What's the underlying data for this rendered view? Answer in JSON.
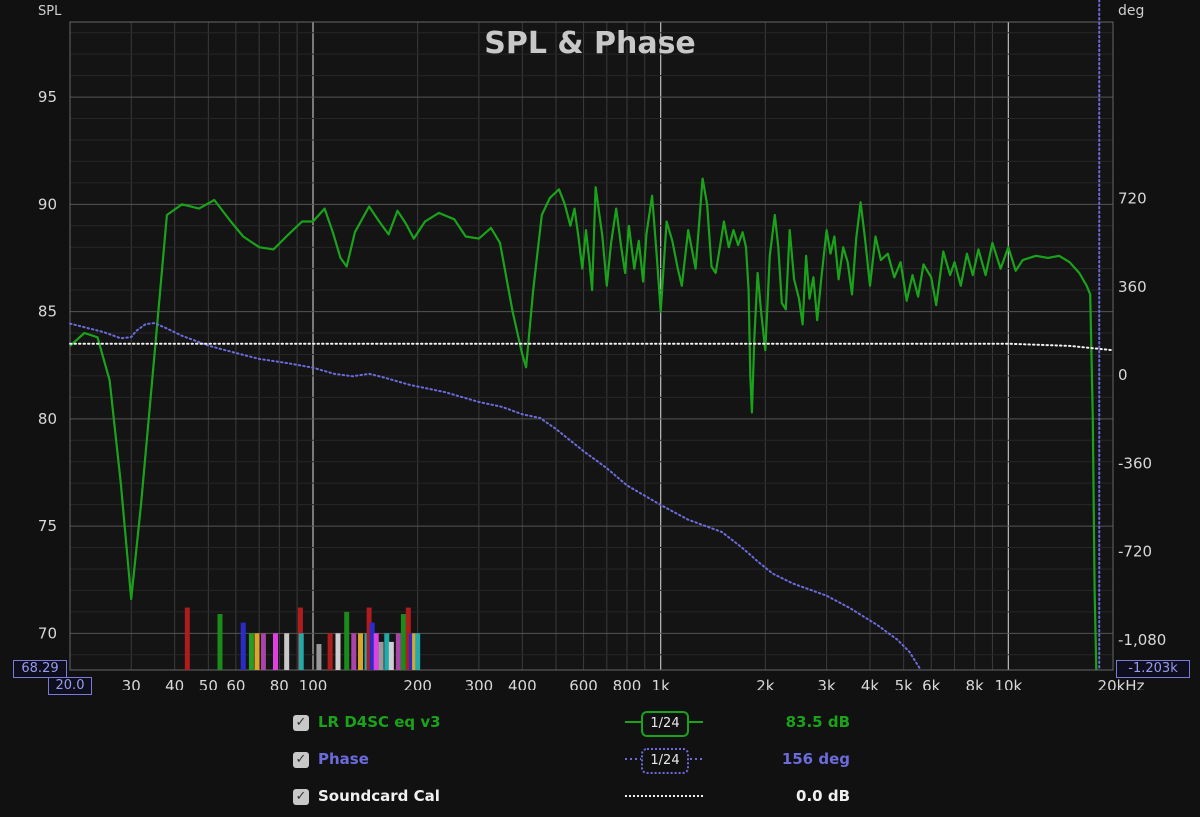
{
  "title": "SPL & Phase",
  "left_axis_label": "SPL",
  "right_axis_label": "deg",
  "x_unit_label": "20kHz",
  "cursor_readouts": {
    "x_start": "20.0",
    "y_left_min": "68.29",
    "y_right_min": "-1.203k"
  },
  "colors": {
    "background": "#111112",
    "spl": "#1a8c1a",
    "phase": "#6b6bdc",
    "cal": "#f0f0f0",
    "grid": "#3a3a3a"
  },
  "legend": [
    {
      "name": "LR D4SC eq v3",
      "value": "83.5 dB",
      "smoothing": "1/24",
      "checked": true,
      "color": "#1aa31a"
    },
    {
      "name": "Phase",
      "value": "156 deg",
      "smoothing": "1/24",
      "checked": true,
      "color": "#6b6bdc"
    },
    {
      "name": "Soundcard Cal",
      "value": "0.0 dB",
      "smoothing": "",
      "checked": true,
      "color": "#f0f0f0"
    }
  ],
  "chart_data": {
    "type": "line",
    "title": "SPL & Phase",
    "x_scale": "log",
    "xlim": [
      20,
      20000
    ],
    "ylim": [
      68.29,
      98.5
    ],
    "y2lim": [
      -1203,
      1440
    ],
    "x_ticks": [
      {
        "v": 20,
        "label": "20.0"
      },
      {
        "v": 30,
        "label": "30"
      },
      {
        "v": 40,
        "label": "40"
      },
      {
        "v": 50,
        "label": "50"
      },
      {
        "v": 60,
        "label": "60"
      },
      {
        "v": 80,
        "label": "80"
      },
      {
        "v": 100,
        "label": "100"
      },
      {
        "v": 200,
        "label": "200"
      },
      {
        "v": 300,
        "label": "300"
      },
      {
        "v": 400,
        "label": "400"
      },
      {
        "v": 600,
        "label": "600"
      },
      {
        "v": 800,
        "label": "800"
      },
      {
        "v": 1000,
        "label": "1k"
      },
      {
        "v": 2000,
        "label": "2k"
      },
      {
        "v": 3000,
        "label": "3k"
      },
      {
        "v": 4000,
        "label": "4k"
      },
      {
        "v": 5000,
        "label": "5k"
      },
      {
        "v": 6000,
        "label": "6k"
      },
      {
        "v": 8000,
        "label": "8k"
      },
      {
        "v": 10000,
        "label": "10k"
      },
      {
        "v": 20000,
        "label": "20kHz"
      }
    ],
    "y_ticks": [
      {
        "v": 70,
        "label": "70"
      },
      {
        "v": 75,
        "label": "75"
      },
      {
        "v": 80,
        "label": "80"
      },
      {
        "v": 85,
        "label": "85"
      },
      {
        "v": 90,
        "label": "90"
      },
      {
        "v": 95,
        "label": "95"
      }
    ],
    "y2_ticks": [
      {
        "v": -1080,
        "label": "-1,080"
      },
      {
        "v": -720,
        "label": "-720"
      },
      {
        "v": -360,
        "label": "-360"
      },
      {
        "v": 0,
        "label": "0"
      },
      {
        "v": 360,
        "label": "360"
      },
      {
        "v": 720,
        "label": "720"
      }
    ],
    "series": [
      {
        "name": "LR D4SC eq v3",
        "axis": "left",
        "style": "solid",
        "color": "#1aa31a",
        "points": [
          [
            20,
            83.4
          ],
          [
            22,
            84
          ],
          [
            24,
            83.8
          ],
          [
            26,
            81.8
          ],
          [
            28,
            77
          ],
          [
            30,
            71.6
          ],
          [
            32,
            76
          ],
          [
            35,
            83
          ],
          [
            38,
            89.5
          ],
          [
            42,
            90
          ],
          [
            47,
            89.8
          ],
          [
            52,
            90.2
          ],
          [
            58,
            89.2
          ],
          [
            63,
            88.5
          ],
          [
            70,
            88
          ],
          [
            77,
            87.9
          ],
          [
            85,
            88.6
          ],
          [
            93,
            89.2
          ],
          [
            100,
            89.2
          ],
          [
            108,
            89.8
          ],
          [
            114,
            88.7
          ],
          [
            120,
            87.5
          ],
          [
            125,
            87.1
          ],
          [
            132,
            88.7
          ],
          [
            145,
            89.9
          ],
          [
            155,
            89.2
          ],
          [
            165,
            88.6
          ],
          [
            175,
            89.7
          ],
          [
            185,
            89.1
          ],
          [
            195,
            88.4
          ],
          [
            210,
            89.2
          ],
          [
            230,
            89.6
          ],
          [
            255,
            89.3
          ],
          [
            275,
            88.5
          ],
          [
            300,
            88.4
          ],
          [
            325,
            88.9
          ],
          [
            345,
            88.2
          ],
          [
            375,
            85
          ],
          [
            400,
            83
          ],
          [
            410,
            82.4
          ],
          [
            430,
            86
          ],
          [
            455,
            89.5
          ],
          [
            480,
            90.3
          ],
          [
            510,
            90.7
          ],
          [
            530,
            90
          ],
          [
            550,
            89
          ],
          [
            565,
            89.8
          ],
          [
            580,
            88.5
          ],
          [
            595,
            87
          ],
          [
            610,
            88.8
          ],
          [
            625,
            87.2
          ],
          [
            635,
            86
          ],
          [
            650,
            90.8
          ],
          [
            680,
            88.5
          ],
          [
            700,
            86.2
          ],
          [
            720,
            88.2
          ],
          [
            745,
            89.8
          ],
          [
            770,
            88
          ],
          [
            790,
            86.8
          ],
          [
            810,
            89
          ],
          [
            840,
            87
          ],
          [
            865,
            88.3
          ],
          [
            890,
            86.4
          ],
          [
            910,
            88.6
          ],
          [
            945,
            90.4
          ],
          [
            975,
            87.5
          ],
          [
            1000,
            85
          ],
          [
            1040,
            89.2
          ],
          [
            1080,
            88.3
          ],
          [
            1120,
            87
          ],
          [
            1150,
            86.2
          ],
          [
            1200,
            88.8
          ],
          [
            1260,
            87
          ],
          [
            1320,
            91.2
          ],
          [
            1360,
            90
          ],
          [
            1400,
            87.1
          ],
          [
            1440,
            86.8
          ],
          [
            1480,
            88
          ],
          [
            1520,
            89.2
          ],
          [
            1570,
            88
          ],
          [
            1620,
            88.8
          ],
          [
            1670,
            88.1
          ],
          [
            1720,
            88.7
          ],
          [
            1760,
            88
          ],
          [
            1790,
            86
          ],
          [
            1810,
            82
          ],
          [
            1830,
            80.3
          ],
          [
            1860,
            83.8
          ],
          [
            1900,
            86.8
          ],
          [
            1950,
            84.8
          ],
          [
            2000,
            83.2
          ],
          [
            2060,
            87.6
          ],
          [
            2130,
            89.5
          ],
          [
            2180,
            88
          ],
          [
            2230,
            85.4
          ],
          [
            2290,
            85.1
          ],
          [
            2350,
            88.8
          ],
          [
            2420,
            86.5
          ],
          [
            2500,
            85.6
          ],
          [
            2560,
            84.4
          ],
          [
            2620,
            87.6
          ],
          [
            2680,
            85.6
          ],
          [
            2750,
            86.6
          ],
          [
            2820,
            84.6
          ],
          [
            2900,
            86.6
          ],
          [
            3000,
            88.8
          ],
          [
            3080,
            87.7
          ],
          [
            3160,
            88.5
          ],
          [
            3250,
            86.5
          ],
          [
            3350,
            88
          ],
          [
            3450,
            87.3
          ],
          [
            3550,
            85.8
          ],
          [
            3650,
            88.4
          ],
          [
            3760,
            90.1
          ],
          [
            3870,
            88.4
          ],
          [
            4000,
            86.2
          ],
          [
            4150,
            88.5
          ],
          [
            4300,
            87.4
          ],
          [
            4500,
            87.7
          ],
          [
            4700,
            86.6
          ],
          [
            4900,
            87.3
          ],
          [
            5100,
            85.5
          ],
          [
            5300,
            86.7
          ],
          [
            5500,
            85.7
          ],
          [
            5700,
            87.2
          ],
          [
            6000,
            86.6
          ],
          [
            6200,
            85.3
          ],
          [
            6500,
            87.8
          ],
          [
            6800,
            86.7
          ],
          [
            7000,
            87.3
          ],
          [
            7300,
            86.2
          ],
          [
            7600,
            87.7
          ],
          [
            7900,
            86.7
          ],
          [
            8200,
            87.9
          ],
          [
            8600,
            86.7
          ],
          [
            9000,
            88.2
          ],
          [
            9500,
            87
          ],
          [
            10000,
            88
          ],
          [
            10500,
            86.9
          ],
          [
            11000,
            87.4
          ],
          [
            12000,
            87.6
          ],
          [
            13000,
            87.5
          ],
          [
            14000,
            87.6
          ],
          [
            15000,
            87.3
          ],
          [
            16000,
            86.8
          ],
          [
            16800,
            86.2
          ],
          [
            17200,
            85.8
          ],
          [
            17500,
            80
          ],
          [
            17700,
            72
          ],
          [
            17900,
            68.3
          ]
        ]
      },
      {
        "name": "Phase",
        "axis": "right",
        "style": "dotted",
        "color": "#6b6bdc",
        "points": [
          [
            20,
            210
          ],
          [
            22,
            195
          ],
          [
            25,
            175
          ],
          [
            28,
            150
          ],
          [
            30,
            155
          ],
          [
            31,
            180
          ],
          [
            33,
            208
          ],
          [
            35,
            212
          ],
          [
            38,
            190
          ],
          [
            42,
            160
          ],
          [
            50,
            120
          ],
          [
            60,
            90
          ],
          [
            70,
            66
          ],
          [
            85,
            48
          ],
          [
            100,
            30
          ],
          [
            115,
            5
          ],
          [
            130,
            -5
          ],
          [
            145,
            5
          ],
          [
            160,
            -10
          ],
          [
            190,
            -40
          ],
          [
            240,
            -70
          ],
          [
            300,
            -110
          ],
          [
            350,
            -130
          ],
          [
            400,
            -160
          ],
          [
            450,
            -175
          ],
          [
            500,
            -220
          ],
          [
            600,
            -310
          ],
          [
            700,
            -380
          ],
          [
            800,
            -450
          ],
          [
            1000,
            -530
          ],
          [
            1200,
            -590
          ],
          [
            1500,
            -640
          ],
          [
            1700,
            -700
          ],
          [
            1800,
            -730
          ],
          [
            1900,
            -760
          ],
          [
            2100,
            -810
          ],
          [
            2400,
            -850
          ],
          [
            3000,
            -900
          ],
          [
            3500,
            -950
          ],
          [
            4200,
            -1020
          ],
          [
            4800,
            -1080
          ],
          [
            5200,
            -1130
          ],
          [
            5600,
            -1203
          ]
        ]
      },
      {
        "name": "Soundcard Cal",
        "axis": "left",
        "style": "dotted",
        "color": "#f0f0f0",
        "points": [
          [
            20,
            83.5
          ],
          [
            100,
            83.5
          ],
          [
            1000,
            83.5
          ],
          [
            5000,
            83.5
          ],
          [
            10000,
            83.5
          ],
          [
            15000,
            83.4
          ],
          [
            20000,
            83.2
          ]
        ]
      }
    ],
    "phase_wrap_line_hz": 17900,
    "filter_markers": [
      {
        "f": 43.5,
        "h": 71.2,
        "c": "#b01c1c"
      },
      {
        "f": 54,
        "h": 70.9,
        "c": "#1a8c1a"
      },
      {
        "f": 63,
        "h": 70.5,
        "c": "#2b2bc8"
      },
      {
        "f": 66.5,
        "h": 70,
        "c": "#2a9a2a"
      },
      {
        "f": 69,
        "h": 70,
        "c": "#d9a62a"
      },
      {
        "f": 72,
        "h": 70,
        "c": "#aa44aa"
      },
      {
        "f": 78,
        "h": 70,
        "c": "#e040e0"
      },
      {
        "f": 84,
        "h": 70,
        "c": "#c8c8c8"
      },
      {
        "f": 92,
        "h": 71.2,
        "c": "#b01c1c"
      },
      {
        "f": 92.5,
        "h": 70,
        "c": "#22aaaa"
      },
      {
        "f": 104,
        "h": 69.5,
        "c": "#999999"
      },
      {
        "f": 112,
        "h": 70,
        "c": "#b01c1c"
      },
      {
        "f": 118,
        "h": 70,
        "c": "#cfcfcf"
      },
      {
        "f": 125,
        "h": 71,
        "c": "#1a8c1a"
      },
      {
        "f": 131,
        "h": 70,
        "c": "#aa44aa"
      },
      {
        "f": 137,
        "h": 70,
        "c": "#d9a62a"
      },
      {
        "f": 143,
        "h": 70,
        "c": "#22aaaa"
      },
      {
        "f": 145,
        "h": 71.2,
        "c": "#b01c1c"
      },
      {
        "f": 148,
        "h": 70.5,
        "c": "#2b2bc8"
      },
      {
        "f": 152,
        "h": 70,
        "c": "#e040e0"
      },
      {
        "f": 157,
        "h": 69.6,
        "c": "#999999"
      },
      {
        "f": 163,
        "h": 70,
        "c": "#22aaaa"
      },
      {
        "f": 168,
        "h": 69.6,
        "c": "#cfcfcf"
      },
      {
        "f": 176,
        "h": 70,
        "c": "#aa44aa"
      },
      {
        "f": 182,
        "h": 70.9,
        "c": "#1a8c1a"
      },
      {
        "f": 188,
        "h": 71.2,
        "c": "#b01c1c"
      },
      {
        "f": 192,
        "h": 70,
        "c": "#2b2bc8"
      },
      {
        "f": 196,
        "h": 70,
        "c": "#d9a62a"
      },
      {
        "f": 200,
        "h": 70,
        "c": "#22aaaa"
      }
    ]
  }
}
